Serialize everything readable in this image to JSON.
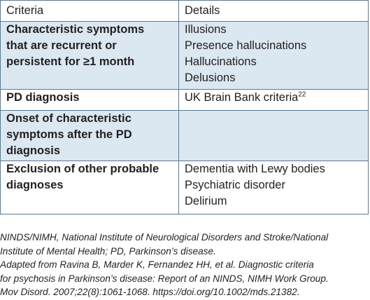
{
  "table": {
    "headers": [
      "Criteria",
      "Details"
    ],
    "rows": [
      {
        "criteria_lines": [
          "Characteristic symptoms",
          "that are recurrent or",
          "persistent for ≥1 month"
        ],
        "details_lines": [
          "Illusions",
          "Presence hallucinations",
          "Hallucinations",
          "Delusions"
        ]
      },
      {
        "criteria_lines": [
          "PD diagnosis"
        ],
        "details_lines": [
          "UK Brain Bank criteria"
        ],
        "details_ref": "22"
      },
      {
        "criteria_lines": [
          "Onset of characteristic",
          "symptoms after the PD",
          "diagnosis"
        ],
        "details_lines": []
      },
      {
        "criteria_lines": [
          "Exclusion of other probable",
          "diagnoses"
        ],
        "details_lines": [
          "Dementia with Lewy bodies",
          "Psychiatric disorder",
          "Delirium"
        ]
      }
    ]
  },
  "footnote": {
    "lines": [
      "NINDS/NIMH, National Institute of Neurological Disorders and Stroke/National",
      "Institute of Mental Health; PD, Parkinson’s disease.",
      "Adapted from Ravina B, Marder K, Fernandez HH, et al. Diagnostic criteria",
      "for psychosis in Parkinson’s disease: Report of an NINDS, NIMH Work Group.",
      "Mov Disord. 2007;22(8):1061-1068. https://doi.org/10.1002/mds.21382."
    ]
  },
  "colors": {
    "shaded_row": "#dbe7f1",
    "border": "#5b7a92",
    "text": "#231f20"
  }
}
